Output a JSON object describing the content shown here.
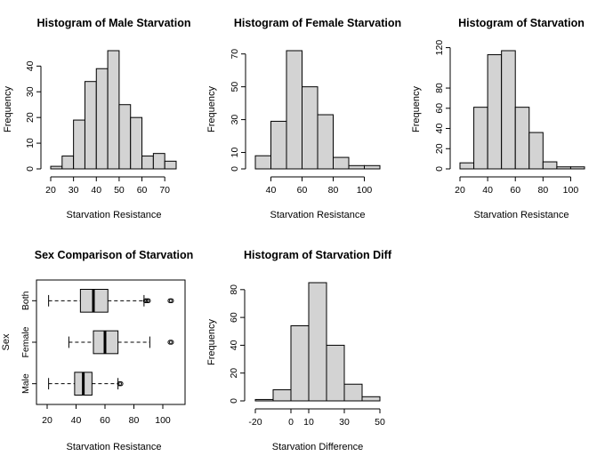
{
  "chart_data": [
    {
      "type": "bar",
      "title": "Histogram of Male Starvation",
      "xlabel": "Starvation Resistance",
      "ylabel": "Frequency",
      "bin_edges": [
        20,
        25,
        30,
        35,
        40,
        45,
        50,
        55,
        60,
        65,
        70,
        75
      ],
      "values": [
        1,
        5,
        19,
        34,
        39,
        46,
        25,
        20,
        5,
        6,
        3
      ],
      "xticks": [
        20,
        30,
        40,
        50,
        60,
        70
      ],
      "yticks": [
        0,
        10,
        20,
        30,
        40
      ],
      "xlim": [
        20,
        75
      ],
      "ylim": [
        0,
        46
      ],
      "bar_color": "#d3d3d3"
    },
    {
      "type": "bar",
      "title": "Histogram of Female Starvation",
      "xlabel": "Starvation Resistance",
      "ylabel": "Frequency",
      "bin_edges": [
        30,
        40,
        50,
        60,
        70,
        80,
        90,
        100,
        110
      ],
      "values": [
        8,
        29,
        72,
        50,
        33,
        7,
        2,
        2
      ],
      "xticks": [
        40,
        60,
        80,
        100
      ],
      "yticks": [
        0,
        10,
        30,
        50,
        70
      ],
      "xlim": [
        30,
        110
      ],
      "ylim": [
        0,
        72
      ],
      "bar_color": "#d3d3d3"
    },
    {
      "type": "bar",
      "title": "Histogram of Starvation",
      "xlabel": "Starvation Resistance",
      "ylabel": "Frequency",
      "bin_edges": [
        20,
        30,
        40,
        50,
        60,
        70,
        80,
        90,
        100,
        110
      ],
      "values": [
        6,
        61,
        113,
        117,
        61,
        36,
        7,
        2,
        2
      ],
      "xticks": [
        20,
        40,
        60,
        80,
        100
      ],
      "yticks": [
        0,
        20,
        40,
        60,
        80,
        120
      ],
      "xlim": [
        20,
        110
      ],
      "ylim": [
        0,
        117
      ],
      "bar_color": "#d3d3d3"
    },
    {
      "type": "boxplot",
      "title": "Sex Comparison of Starvation",
      "xlabel": "Starvation Resistance",
      "ylabel": "Sex",
      "xticks": [
        20,
        40,
        60,
        80,
        100
      ],
      "xlim": [
        20,
        108
      ],
      "groups": [
        {
          "name": "Male",
          "whisker_low": 21,
          "q1": 39,
          "median": 45,
          "q3": 51,
          "whisker_high": 69,
          "outliers": [
            70,
            71
          ]
        },
        {
          "name": "Female",
          "whisker_low": 35,
          "q1": 52,
          "median": 60,
          "q3": 69,
          "whisker_high": 91,
          "outliers": [
            105,
            106
          ]
        },
        {
          "name": "Both",
          "whisker_low": 21,
          "q1": 43,
          "median": 52,
          "q3": 62,
          "whisker_high": 87,
          "outliers": [
            88,
            89,
            90,
            105,
            106
          ]
        }
      ],
      "box_color": "#d3d3d3"
    },
    {
      "type": "bar",
      "title": "Histogram of Starvation Diff",
      "xlabel": "Starvation Difference",
      "ylabel": "Frequency",
      "bin_edges": [
        -20,
        -10,
        0,
        10,
        20,
        30,
        40,
        50
      ],
      "values": [
        1,
        8,
        54,
        85,
        40,
        12,
        3
      ],
      "xticks": [
        -20,
        0,
        10,
        30,
        50
      ],
      "yticks": [
        0,
        20,
        40,
        60,
        80
      ],
      "xlim": [
        -20,
        50
      ],
      "ylim": [
        0,
        85
      ],
      "bar_color": "#d3d3d3"
    }
  ]
}
